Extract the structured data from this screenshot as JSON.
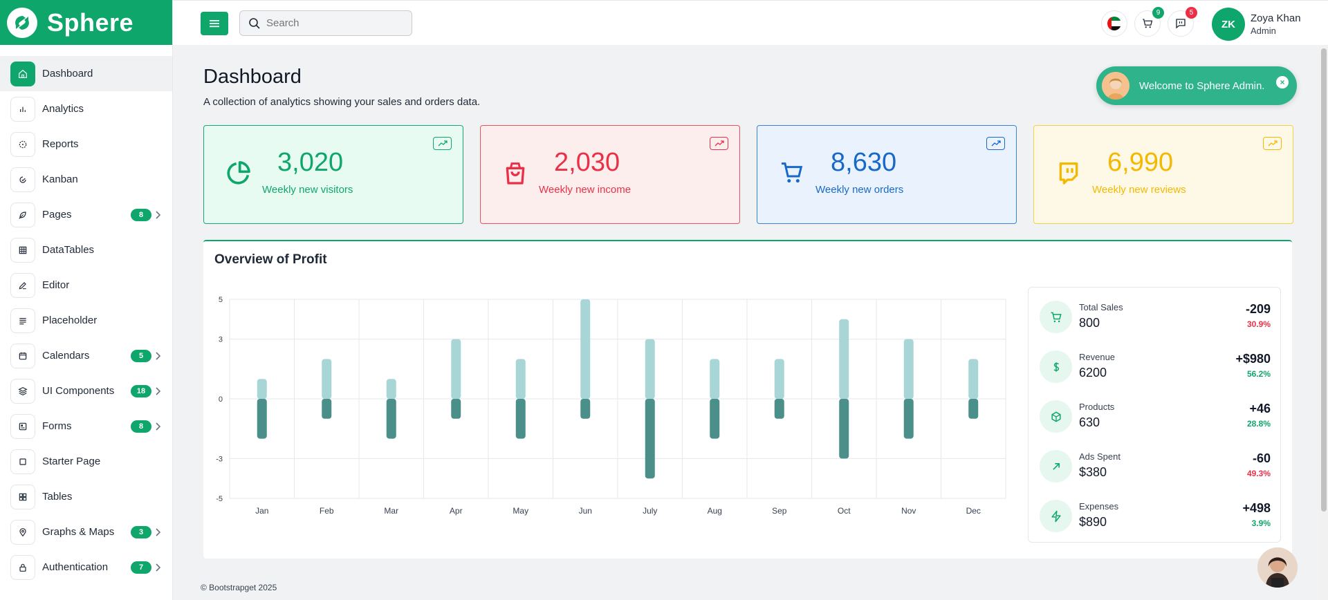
{
  "brand": {
    "name": "Sphere",
    "logo_icon": "sphere-logo-icon",
    "color": "#0ea66b"
  },
  "sidebar": {
    "items": [
      {
        "label": "Dashboard",
        "icon": "home-icon",
        "active": true,
        "badge": "",
        "chevron": false
      },
      {
        "label": "Analytics",
        "icon": "bar-chart-icon",
        "active": false,
        "badge": "",
        "chevron": false
      },
      {
        "label": "Reports",
        "icon": "gauge-icon",
        "active": false,
        "badge": "",
        "chevron": false
      },
      {
        "label": "Kanban",
        "icon": "kanban-icon",
        "active": false,
        "badge": "",
        "chevron": false
      },
      {
        "label": "Pages",
        "icon": "feather-icon",
        "active": false,
        "badge": "8",
        "chevron": true
      },
      {
        "label": "DataTables",
        "icon": "table-icon",
        "active": false,
        "badge": "",
        "chevron": false
      },
      {
        "label": "Editor",
        "icon": "pencil-icon",
        "active": false,
        "badge": "",
        "chevron": false
      },
      {
        "label": "Placeholder",
        "icon": "lines-icon",
        "active": false,
        "badge": "",
        "chevron": false
      },
      {
        "label": "Calendars",
        "icon": "calendar-icon",
        "active": false,
        "badge": "5",
        "chevron": true
      },
      {
        "label": "UI Components",
        "icon": "layers-icon",
        "active": false,
        "badge": "18",
        "chevron": true
      },
      {
        "label": "Forms",
        "icon": "form-icon",
        "active": false,
        "badge": "8",
        "chevron": true
      },
      {
        "label": "Starter Page",
        "icon": "square-icon",
        "active": false,
        "badge": "",
        "chevron": false
      },
      {
        "label": "Tables",
        "icon": "grid-icon",
        "active": false,
        "badge": "",
        "chevron": false
      },
      {
        "label": "Graphs & Maps",
        "icon": "map-pin-icon",
        "active": false,
        "badge": "3",
        "chevron": true
      },
      {
        "label": "Authentication",
        "icon": "lock-icon",
        "active": false,
        "badge": "7",
        "chevron": true
      }
    ]
  },
  "topbar": {
    "search_placeholder": "Search",
    "cart_count": "9",
    "messages_count": "5",
    "user": {
      "initials": "ZK",
      "name": "Zoya Khan",
      "role": "Admin"
    }
  },
  "page": {
    "title": "Dashboard",
    "subtitle": "A collection of analytics showing your sales and orders data."
  },
  "toast": {
    "text": "Welcome to Sphere Admin.",
    "close": "×"
  },
  "stats": [
    {
      "value": "3,020",
      "label": "Weekly new visitors",
      "icon": "pie-chart-icon",
      "color": "#0ea66b",
      "bg": "#e8fbf3",
      "border": "#1aa574"
    },
    {
      "value": "2,030",
      "label": "Weekly new income",
      "icon": "shopping-bag-icon",
      "color": "#ea2f47",
      "bg": "#fdeeee",
      "border": "#e8505f"
    },
    {
      "value": "8,630",
      "label": "Weekly new orders",
      "icon": "cart-icon",
      "color": "#1769c9",
      "bg": "#eaf3fd",
      "border": "#3b82d6"
    },
    {
      "value": "6,990",
      "label": "Weekly new reviews",
      "icon": "twitch-icon",
      "color": "#f5b800",
      "bg": "#fef9e7",
      "border": "#f7cf45"
    }
  ],
  "profit": {
    "title": "Overview of Profit",
    "summary": [
      {
        "label": "Total Sales",
        "value": "800",
        "delta": "-209",
        "pct": "30.9%",
        "pct_color": "#ea2f47",
        "icon": "cart-icon"
      },
      {
        "label": "Revenue",
        "value": "6200",
        "delta": "+$980",
        "pct": "56.2%",
        "pct_color": "#0ea66b",
        "icon": "dollar-icon"
      },
      {
        "label": "Products",
        "value": "630",
        "delta": "+46",
        "pct": "28.8%",
        "pct_color": "#0ea66b",
        "icon": "box-icon"
      },
      {
        "label": "Ads Spent",
        "value": "$380",
        "delta": "-60",
        "pct": "49.3%",
        "pct_color": "#ea2f47",
        "icon": "arrow-up-right-icon"
      },
      {
        "label": "Expenses",
        "value": "$890",
        "delta": "+498",
        "pct": "3.9%",
        "pct_color": "#0ea66b",
        "icon": "zap-icon"
      }
    ]
  },
  "chart_data": {
    "type": "bar",
    "title": "",
    "categories": [
      "Jan",
      "Feb",
      "Mar",
      "Apr",
      "May",
      "Jun",
      "July",
      "Aug",
      "Sep",
      "Oct",
      "Nov",
      "Dec"
    ],
    "series": [
      {
        "name": "",
        "values": [
          1,
          2,
          1,
          3,
          2,
          5,
          3,
          2,
          2,
          4,
          3,
          2
        ],
        "color": "#a8d5d5"
      },
      {
        "name": "",
        "values": [
          -2,
          -1,
          -2,
          -1,
          -2,
          -1,
          -4,
          -2,
          -1,
          -3,
          -2,
          -1
        ],
        "color": "#4a8f89"
      }
    ],
    "ylim": [
      -5,
      5
    ],
    "yticks": [
      "5",
      "3",
      "0",
      "-3",
      "-5"
    ],
    "grid": true
  },
  "footer": "© Bootstrapget 2025"
}
